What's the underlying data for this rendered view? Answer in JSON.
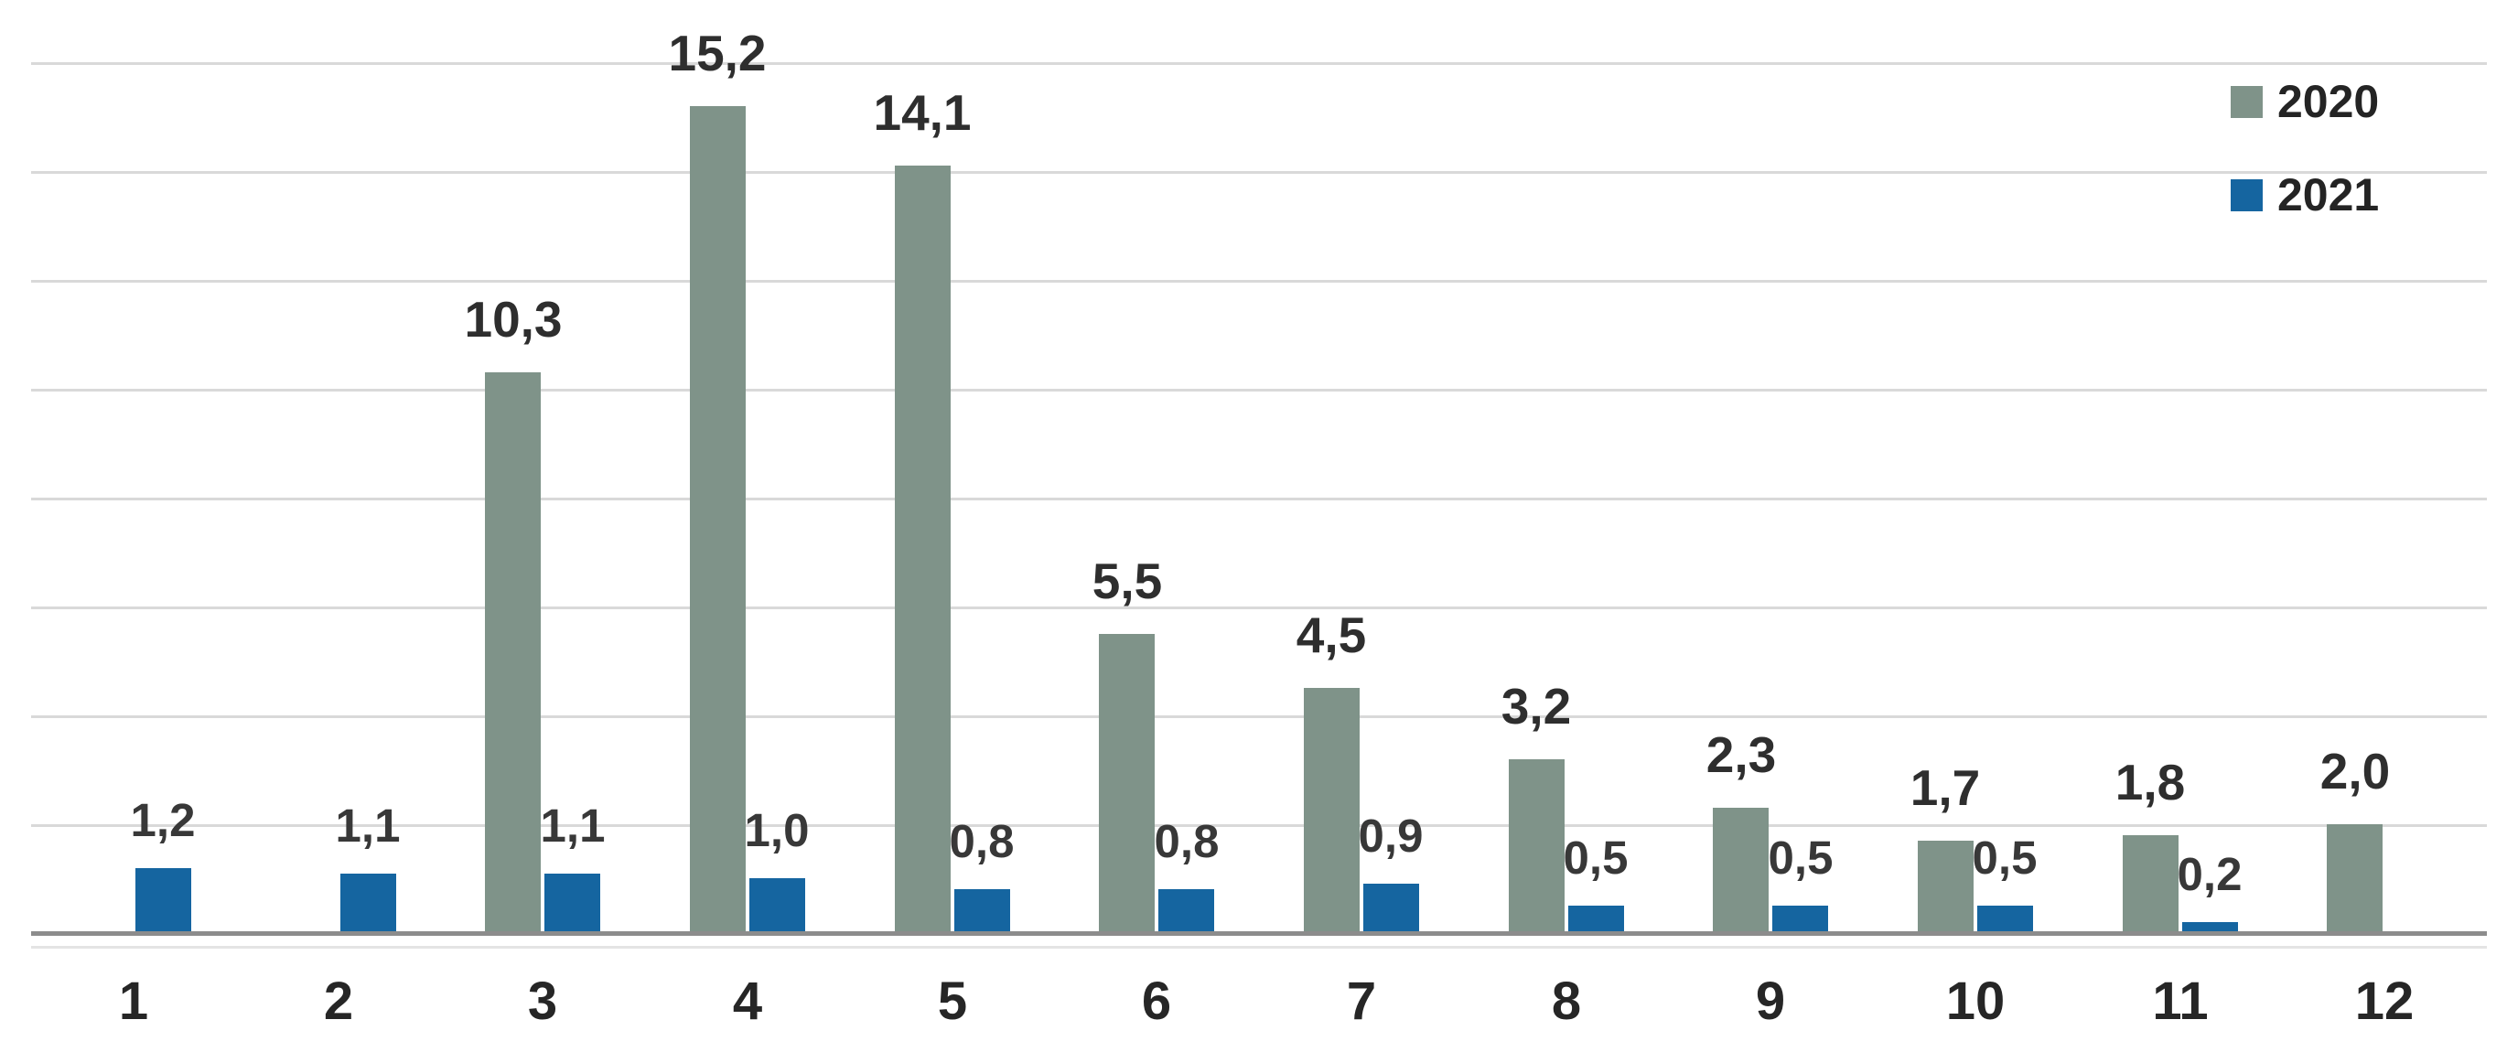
{
  "chart_data": {
    "type": "bar",
    "title": "",
    "xlabel": "",
    "ylabel": "",
    "decimal_separator": ",",
    "categories": [
      "1",
      "2",
      "3",
      "4",
      "5",
      "6",
      "7",
      "8",
      "9",
      "10",
      "11",
      "12"
    ],
    "series": [
      {
        "name": "2020",
        "color": "#7F9389",
        "values": [
          null,
          null,
          10.3,
          15.2,
          14.1,
          5.5,
          4.5,
          3.2,
          2.3,
          1.7,
          1.8,
          2.0
        ],
        "labels": [
          "",
          "",
          "10,3",
          "15,2",
          "14,1",
          "5,5",
          "4,5",
          "3,2",
          "2,3",
          "1,7",
          "1,8",
          "2,0"
        ]
      },
      {
        "name": "2021",
        "color": "#1565A0",
        "values": [
          1.2,
          1.1,
          1.1,
          1.0,
          0.8,
          0.8,
          0.9,
          0.5,
          0.5,
          0.5,
          0.2,
          null
        ],
        "labels": [
          "1,2",
          "1,1",
          "1,1",
          "1,0",
          "0,8",
          "0,8",
          "0,9",
          "0,5",
          "0,5",
          "0,5",
          "0,2",
          ""
        ]
      }
    ],
    "ylim": [
      0,
      16
    ],
    "ytick_step": 2,
    "grid": "horizontal-light-gray, no y-axis tick labels",
    "legend_position": "top-right",
    "colors": {
      "gridline": "#d9d9d9",
      "axis_line": "#8c8c8c",
      "data_label": "#2e2e2e",
      "axis_label": "#262626",
      "background": "#ffffff"
    }
  }
}
